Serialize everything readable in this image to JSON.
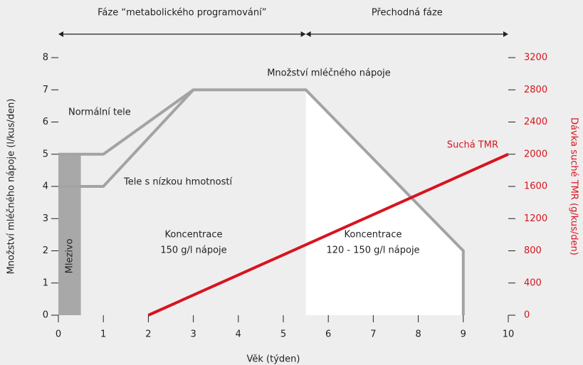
{
  "chart_data": {
    "type": "line",
    "x_label": "Věk (týden)",
    "y_label": "Množství mléčného nápoje (l/kus/den)",
    "y2_label": "Dávka suché TMR (g/kus/den)",
    "xlim": [
      0,
      10
    ],
    "xticks": [
      0,
      1,
      2,
      3,
      4,
      5,
      6,
      7,
      8,
      9,
      10
    ],
    "ylim": [
      0,
      8
    ],
    "yticks": [
      0,
      1,
      2,
      3,
      4,
      5,
      6,
      7,
      8
    ],
    "y2lim": [
      0,
      3200
    ],
    "y2ticks": [
      0,
      400,
      800,
      1200,
      1600,
      2000,
      2400,
      2800,
      3200
    ],
    "series": [
      {
        "name": "Normální tele",
        "color": "#a3a3a3",
        "x": [
          0,
          1,
          3,
          5.5,
          9,
          9
        ],
        "values": [
          5,
          5,
          7,
          7,
          2,
          0
        ]
      },
      {
        "name": "Tele s nízkou hmotností",
        "color": "#a3a3a3",
        "x": [
          0,
          1,
          3
        ],
        "values": [
          4,
          4,
          7
        ]
      },
      {
        "name": "Suchá TMR",
        "color": "#d7141f",
        "axis": "y2",
        "x": [
          2,
          10
        ],
        "values": [
          0,
          2000
        ]
      }
    ],
    "colostrum": {
      "label": "Mlezivo",
      "x": [
        0,
        0.5
      ],
      "value": 5,
      "color": "#a8a8a8"
    },
    "phases": [
      {
        "label": "Fáze “metabolického programování”",
        "start": 0,
        "end": 5.5
      },
      {
        "label": "Přechodná fáze",
        "start": 5.5,
        "end": 10
      }
    ],
    "annotations": [
      {
        "lines": [
          "Množství mléčného nápoje"
        ]
      },
      {
        "lines": [
          "Koncentrace",
          "150 g/l nápoje"
        ]
      },
      {
        "lines": [
          "Koncentrace",
          "120 - 150 g/l nápoje"
        ]
      }
    ]
  }
}
